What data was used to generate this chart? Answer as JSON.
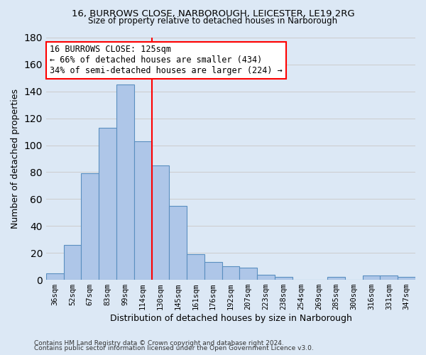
{
  "title1": "16, BURROWS CLOSE, NARBOROUGH, LEICESTER, LE19 2RG",
  "title2": "Size of property relative to detached houses in Narborough",
  "xlabel": "Distribution of detached houses by size in Narborough",
  "ylabel": "Number of detached properties",
  "footnote1": "Contains HM Land Registry data © Crown copyright and database right 2024.",
  "footnote2": "Contains public sector information licensed under the Open Government Licence v3.0.",
  "bar_labels": [
    "36sqm",
    "52sqm",
    "67sqm",
    "83sqm",
    "99sqm",
    "114sqm",
    "130sqm",
    "145sqm",
    "161sqm",
    "176sqm",
    "192sqm",
    "207sqm",
    "223sqm",
    "238sqm",
    "254sqm",
    "269sqm",
    "285sqm",
    "300sqm",
    "316sqm",
    "331sqm",
    "347sqm"
  ],
  "bar_values": [
    5,
    26,
    79,
    113,
    145,
    103,
    85,
    55,
    19,
    13,
    10,
    9,
    4,
    2,
    0,
    0,
    2,
    0,
    3,
    3,
    2
  ],
  "bar_color": "#aec6e8",
  "bar_edge_color": "#5a8fc0",
  "vline_x": 5.5,
  "vline_color": "red",
  "annotation_text": "16 BURROWS CLOSE: 125sqm\n← 66% of detached houses are smaller (434)\n34% of semi-detached houses are larger (224) →",
  "annotation_box_color": "white",
  "annotation_box_edge_color": "red",
  "ylim": [
    0,
    180
  ],
  "yticks": [
    0,
    20,
    40,
    60,
    80,
    100,
    120,
    140,
    160,
    180
  ],
  "grid_color": "#cccccc",
  "background_color": "#dce8f5"
}
